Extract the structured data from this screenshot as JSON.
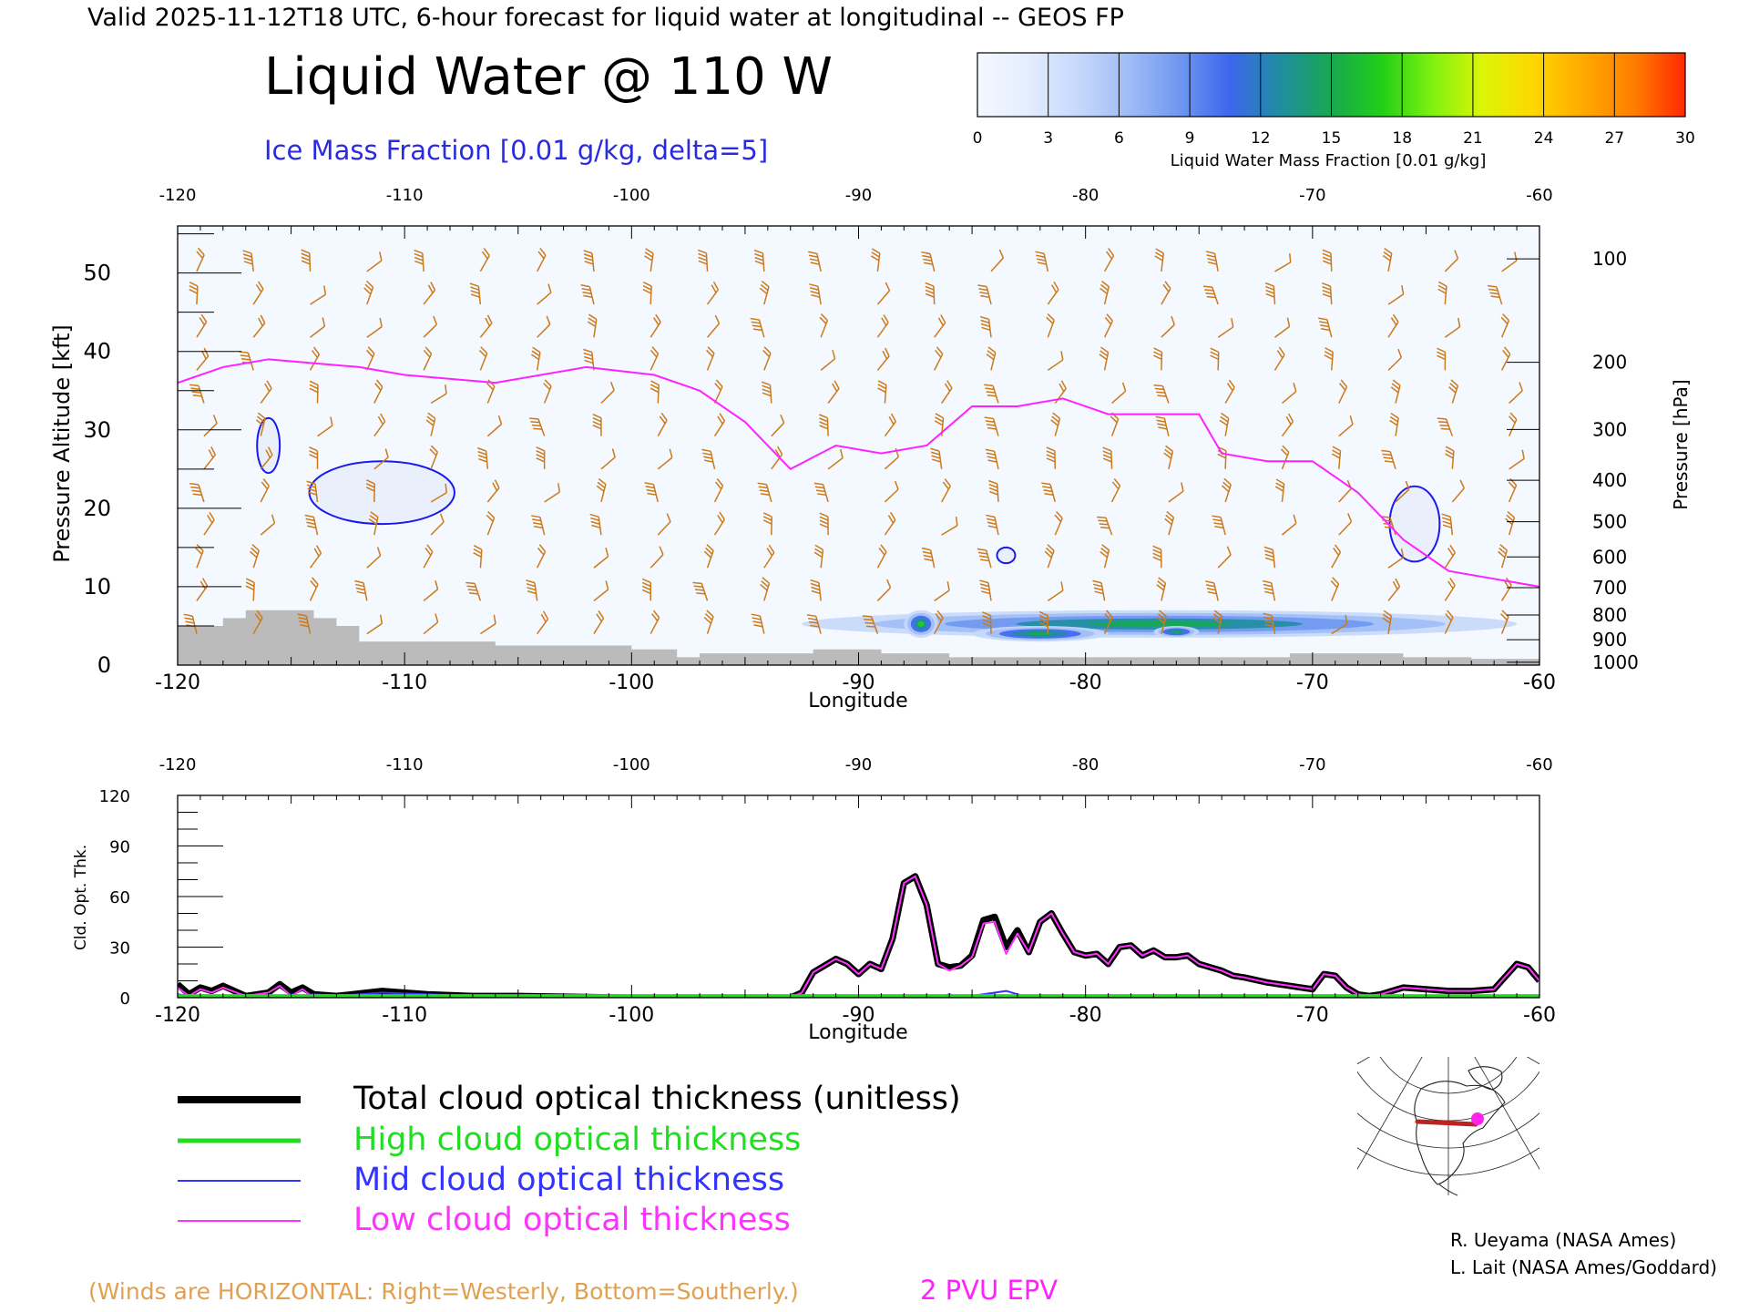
{
  "header": {
    "valid_line": "Valid 2025-11-12T18 UTC, 6-hour forecast for liquid water at longitudinal -- GEOS FP",
    "main_title": "Liquid Water @ 110 W",
    "subtitle": "Ice Mass Fraction [0.01 g/kg, delta=5]"
  },
  "colorbar": {
    "label": "Liquid Water Mass Fraction [0.01 g/kg]",
    "ticks": [
      "0",
      "3",
      "6",
      "9",
      "12",
      "15",
      "18",
      "21",
      "24",
      "27",
      "30"
    ],
    "colors": [
      "#f4f8ff",
      "#e4edfd",
      "#c6d8fb",
      "#9fbcf6",
      "#6f97f1",
      "#3d66ec",
      "#1f8ea0",
      "#17a84f",
      "#22cf18",
      "#7ef10e",
      "#ddf507",
      "#ffd700",
      "#ffa800",
      "#ff7d00",
      "#ff2800"
    ]
  },
  "top_panel": {
    "top_axis_ticks": [
      "-120",
      "-110",
      "-100",
      "-90",
      "-80",
      "-70",
      "-60"
    ],
    "bottom_axis_ticks": [
      "-120",
      "-110",
      "-100",
      "-90",
      "-80",
      "-70",
      "-60"
    ],
    "xlabel": "Longitude",
    "ylabel": "Pressure Altitude [kft]",
    "y_ticks": [
      "0",
      "10",
      "20",
      "30",
      "40",
      "50"
    ],
    "right_label": "Pressure [hPa]",
    "pressure_ticks": [
      "100",
      "200",
      "300",
      "400",
      "500",
      "600",
      "700",
      "800",
      "900",
      "1000"
    ],
    "pressure_values": [
      100,
      200,
      300,
      400,
      500,
      600,
      700,
      800,
      900,
      1000
    ]
  },
  "bottom_panel": {
    "top_axis_ticks": [
      "-120",
      "-110",
      "-100",
      "-90",
      "-80",
      "-70",
      "-60"
    ],
    "bottom_axis_ticks": [
      "-120",
      "-110",
      "-100",
      "-90",
      "-80",
      "-70",
      "-60"
    ],
    "xlabel": "Longitude",
    "ylabel": "Cld. Opt. Thk.",
    "y_ticks": [
      "0",
      "30",
      "60",
      "90",
      "120"
    ]
  },
  "legend": {
    "items": [
      {
        "label": "Total cloud optical thickness (unitless)",
        "color": "#000000"
      },
      {
        "label": "High cloud optical thickness",
        "color": "#22dd22"
      },
      {
        "label": "Mid cloud optical thickness",
        "color": "#3333ff"
      },
      {
        "label": "Low cloud optical thickness",
        "color": "#ff33ff"
      }
    ]
  },
  "footer": {
    "winds_note": "(Winds are HORIZONTAL: Right=Westerly, Bottom=Southerly.)",
    "epv_label": "2 PVU EPV",
    "credit_1": "R. Ueyama (NASA Ames)",
    "credit_2": "L. Lait (NASA Ames/Goddard)"
  },
  "colors": {
    "tropopause": "#ff22ff",
    "ice_contour": "#1a1aee",
    "wind_barb": "#cc7a1a",
    "terrain": "#bbbbbb",
    "total": "#000000",
    "high": "#22dd22",
    "mid": "#3333ff",
    "low": "#ff33ff"
  },
  "chart_data": [
    {
      "type": "heatmap",
      "title": "Liquid Water @ 110 W",
      "xlabel": "Longitude",
      "ylabel": "Pressure Altitude [kft]",
      "xlim": [
        -120,
        -60
      ],
      "ylim": [
        0,
        56
      ],
      "y2label": "Pressure [hPa]",
      "liquid_water_regions": [
        {
          "lon_min": -92.5,
          "lon_max": -61,
          "alt_min": 3.5,
          "alt_max": 7,
          "peak_value": 15
        },
        {
          "lon_min": -88,
          "lon_max": -86.5,
          "alt_min": 3.5,
          "alt_max": 7,
          "peak_value": 17
        },
        {
          "lon_min": -85,
          "lon_max": -79,
          "alt_min": 3,
          "alt_max": 5,
          "peak_value": 16
        },
        {
          "lon_min": -77,
          "lon_max": -75,
          "alt_min": 3.5,
          "alt_max": 5,
          "peak_value": 16
        }
      ],
      "epv_2pvu_line": {
        "lon": [
          -120,
          -118,
          -116,
          -112,
          -110,
          -106,
          -102,
          -99,
          -97,
          -95,
          -93,
          -91,
          -89,
          -87,
          -85,
          -83,
          -81,
          -79,
          -77,
          -75,
          -74,
          -72,
          -70,
          -68,
          -66,
          -65,
          -64,
          -62,
          -60
        ],
        "alt_kft": [
          36,
          38,
          39,
          38,
          37,
          36,
          38,
          37,
          35,
          31,
          25,
          28,
          27,
          28,
          33,
          33,
          34,
          32,
          32,
          32,
          27,
          26,
          26,
          22,
          16,
          14,
          12,
          11,
          10
        ]
      },
      "ice_contours": [
        {
          "lon_center": -111,
          "alt_center": 22,
          "lon_half": 3.2,
          "alt_half": 4
        },
        {
          "lon_center": -116,
          "alt_center": 28,
          "lon_half": 0.5,
          "alt_half": 3.5
        },
        {
          "lon_center": -65.5,
          "alt_center": 18,
          "lon_half": 1.1,
          "alt_half": 4.8
        },
        {
          "lon_center": -83.5,
          "alt_center": 14,
          "lon_half": 0.4,
          "alt_half": 1
        }
      ],
      "terrain_alt_kft": {
        "lon": [
          -120,
          -119,
          -118,
          -117,
          -116,
          -115,
          -114,
          -113,
          -112,
          -111,
          -110,
          -109,
          -108,
          -107,
          -106,
          -105,
          -104,
          -103,
          -102,
          -101,
          -100,
          -99,
          -98,
          -97,
          -96,
          -95,
          -94,
          -93,
          -92,
          -91,
          -90,
          -89,
          -88,
          -87,
          -86,
          -85,
          -84,
          -83,
          -82,
          -81,
          -80,
          -79,
          -78,
          -77,
          -76,
          -75,
          -74,
          -73,
          -72,
          -71,
          -70,
          -69,
          -68,
          -67,
          -66,
          -65,
          -64,
          -63,
          -62,
          -61,
          -60
        ],
        "alt": [
          5,
          5,
          6,
          7,
          7,
          7,
          6,
          5,
          3,
          3,
          3,
          3,
          3,
          3,
          2.5,
          2.5,
          2.5,
          2.5,
          2.5,
          2.5,
          2,
          2,
          1,
          1.5,
          1.5,
          1.5,
          1.5,
          1.5,
          2,
          2,
          2,
          1.5,
          1.5,
          1.5,
          1,
          1,
          1,
          1,
          1,
          1,
          1,
          1,
          1,
          1,
          1,
          1,
          1,
          1,
          1,
          1.5,
          1.5,
          1.5,
          1.5,
          1.5,
          1,
          1,
          1,
          0.8,
          0.8,
          0.8,
          0.8
        ]
      }
    },
    {
      "type": "line",
      "xlabel": "Longitude",
      "ylabel": "Cld. Opt. Thk.",
      "xlim": [
        -120,
        -60
      ],
      "ylim": [
        0,
        120
      ],
      "x": [
        -120,
        -119.5,
        -119,
        -118.5,
        -118,
        -117,
        -116,
        -115.5,
        -115,
        -114.5,
        -114,
        -113,
        -111,
        -109,
        -107,
        -105,
        -100,
        -95,
        -93,
        -92.5,
        -92,
        -91,
        -90.5,
        -90,
        -89.5,
        -89,
        -88.5,
        -88,
        -87.5,
        -87,
        -86.5,
        -86,
        -85.5,
        -85,
        -84.5,
        -84,
        -83.5,
        -83,
        -82.5,
        -82,
        -81.5,
        -81,
        -80.5,
        -80,
        -79.5,
        -79,
        -78.5,
        -78,
        -77.5,
        -77,
        -76.5,
        -76,
        -75.5,
        -75,
        -74.5,
        -74,
        -73.5,
        -73,
        -72,
        -71,
        -70,
        -69.5,
        -69,
        -68.5,
        -68,
        -67.5,
        -67,
        -66,
        -65,
        -64,
        -63,
        -62,
        -61,
        -60.5,
        -60
      ],
      "series": [
        {
          "name": "Total cloud optical thickness (unitless)",
          "color": "#000000",
          "values": [
            8,
            2,
            6,
            4,
            7,
            1,
            3,
            8,
            3,
            6,
            2,
            1,
            4,
            2,
            1,
            1,
            0,
            0,
            0,
            3,
            15,
            23,
            20,
            14,
            20,
            17,
            35,
            68,
            72,
            55,
            20,
            18,
            19,
            25,
            46,
            48,
            30,
            40,
            27,
            45,
            50,
            38,
            27,
            25,
            26,
            20,
            30,
            31,
            25,
            28,
            24,
            24,
            25,
            20,
            18,
            16,
            13,
            12,
            9,
            7,
            5,
            14,
            13,
            6,
            2,
            1,
            2,
            6,
            5,
            4,
            4,
            5,
            20,
            18,
            10
          ]
        },
        {
          "name": "High cloud optical thickness",
          "color": "#22dd22",
          "values": [
            1,
            1,
            1,
            1,
            1,
            1,
            1,
            1,
            1,
            1,
            1,
            1,
            1,
            1,
            1,
            1,
            1,
            1,
            1,
            1,
            1,
            1,
            1,
            1,
            1,
            1,
            1,
            1,
            1,
            1,
            1,
            1,
            1,
            1,
            1,
            1,
            1,
            1,
            1,
            1,
            1,
            1,
            1,
            1,
            1,
            1,
            1,
            1,
            1,
            1,
            1,
            1,
            1,
            1,
            1,
            1,
            1,
            1,
            1,
            1,
            1,
            1,
            1,
            1,
            1,
            1,
            1,
            1,
            1,
            1,
            1,
            1,
            1,
            1,
            1
          ]
        },
        {
          "name": "Mid cloud optical thickness",
          "color": "#3333ff",
          "values": [
            2,
            1,
            1,
            1,
            1,
            0,
            0,
            0,
            2,
            1,
            2,
            1,
            3,
            2,
            1,
            1,
            0,
            0,
            0,
            0,
            0,
            0,
            0,
            0,
            0,
            0,
            0,
            0,
            0,
            0,
            0,
            2,
            0,
            1,
            2,
            3,
            4,
            2,
            0,
            0,
            0,
            0,
            0,
            0,
            0,
            0,
            0,
            0,
            0,
            0,
            0,
            0,
            0,
            0,
            0,
            0,
            0,
            0,
            0,
            0,
            0,
            0,
            0,
            0,
            0,
            0,
            0,
            0,
            0,
            0,
            0,
            0,
            0,
            0,
            0
          ]
        },
        {
          "name": "Low cloud optical thickness",
          "color": "#ff33ff",
          "values": [
            6,
            1,
            5,
            3,
            6,
            1,
            3,
            7,
            1,
            5,
            0,
            0,
            1,
            0,
            0,
            0,
            0,
            0,
            0,
            3,
            15,
            23,
            20,
            14,
            20,
            17,
            35,
            68,
            72,
            55,
            20,
            16,
            19,
            24,
            44,
            45,
            26,
            38,
            27,
            45,
            50,
            38,
            27,
            25,
            26,
            20,
            30,
            31,
            25,
            28,
            24,
            24,
            25,
            20,
            18,
            16,
            13,
            12,
            9,
            7,
            5,
            14,
            13,
            6,
            2,
            1,
            2,
            6,
            5,
            4,
            4,
            5,
            20,
            18,
            10
          ]
        }
      ]
    }
  ]
}
